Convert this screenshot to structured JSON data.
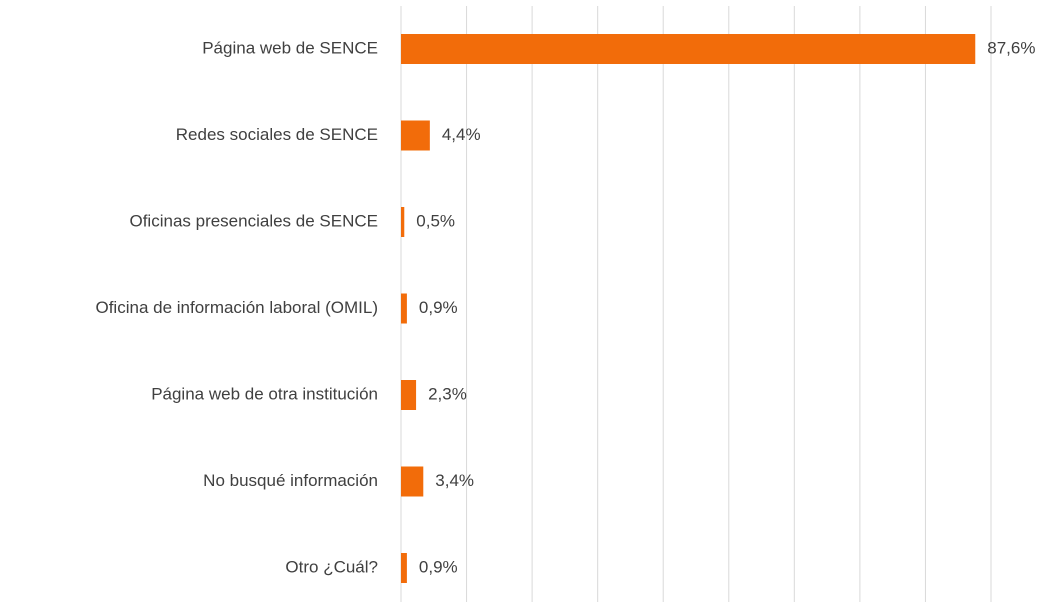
{
  "chart_data": {
    "type": "barh",
    "categories": [
      "Página web de SENCE",
      "Redes sociales de SENCE",
      "Oficinas presenciales de SENCE",
      "Oficina de información laboral (OMIL)",
      "Página web de otra institución",
      "No busqué información",
      "Otro ¿Cuál?"
    ],
    "values": [
      87.6,
      4.4,
      0.5,
      0.9,
      2.3,
      3.4,
      0.9
    ],
    "value_labels": [
      "87,6%",
      "4,4%",
      "0,5%",
      "0,9%",
      "2,3%",
      "3,4%",
      "0,9%"
    ],
    "color": "#f26c0a",
    "xlim": [
      0,
      90
    ],
    "xticks": [
      0,
      10,
      20,
      30,
      40,
      50,
      60,
      70,
      80,
      90
    ],
    "grid": true
  }
}
